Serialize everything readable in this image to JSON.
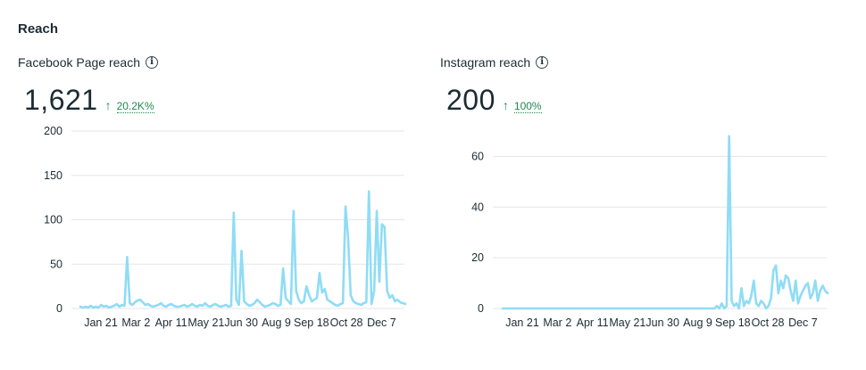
{
  "section_title": "Reach",
  "panels": [
    {
      "title": "Facebook Page reach",
      "icon": "info-icon",
      "value": "1,621",
      "delta": "20.2K%",
      "delta_color": "#1f8a50",
      "chart_data": {
        "type": "line",
        "color": "#8fdcf5",
        "x_tick_labels": [
          "Jan 21",
          "Mar 2",
          "Apr 11",
          "May 21",
          "Jun 30",
          "Aug 9",
          "Sep 18",
          "Oct 28",
          "Dec 7"
        ],
        "y_ticks": [
          0,
          50,
          100,
          150,
          200
        ],
        "ylim": [
          0,
          200
        ],
        "grid": true,
        "series": [
          {
            "values": [
              2,
              1,
              2,
              1,
              3,
              1,
              2,
              1,
              4,
              2,
              3,
              1,
              2,
              3,
              5,
              2,
              4,
              3,
              58,
              6,
              4,
              7,
              9,
              10,
              7,
              4,
              5,
              3,
              2,
              3,
              4,
              6,
              3,
              2,
              4,
              5,
              3,
              2,
              2,
              3,
              4,
              2,
              3,
              5,
              3,
              2,
              4,
              3,
              6,
              3,
              2,
              4,
              5,
              3,
              2,
              3,
              4,
              2,
              3,
              108,
              10,
              4,
              65,
              8,
              5,
              3,
              4,
              6,
              10,
              7,
              4,
              2,
              3,
              4,
              6,
              5,
              3,
              4,
              45,
              12,
              8,
              5,
              110,
              20,
              10,
              6,
              8,
              25,
              15,
              8,
              10,
              12,
              40,
              18,
              22,
              10,
              8,
              6,
              4,
              3,
              5,
              6,
              115,
              80,
              15,
              8,
              6,
              5,
              4,
              6,
              7,
              132,
              5,
              20,
              110,
              30,
              95,
              92,
              20,
              12,
              15,
              8,
              10,
              7,
              6,
              5
            ]
          }
        ]
      }
    },
    {
      "title": "Instagram reach",
      "icon": "info-icon",
      "value": "200",
      "delta": "100%",
      "delta_color": "#1f8a50",
      "chart_data": {
        "type": "line",
        "color": "#8fdcf5",
        "x_tick_labels": [
          "Jan 21",
          "Mar 2",
          "Apr 11",
          "May 21",
          "Jun 30",
          "Aug 9",
          "Sep 18",
          "Oct 28",
          "Dec 7"
        ],
        "y_ticks": [
          0,
          20,
          40,
          60
        ],
        "ylim": [
          0,
          70
        ],
        "grid": true,
        "series": [
          {
            "values": [
              0,
              0,
              0,
              0,
              0,
              0,
              0,
              0,
              0,
              0,
              0,
              0,
              0,
              0,
              0,
              0,
              0,
              0,
              0,
              0,
              0,
              0,
              0,
              0,
              0,
              0,
              0,
              0,
              0,
              0,
              0,
              0,
              0,
              0,
              0,
              0,
              0,
              0,
              0,
              0,
              0,
              0,
              0,
              0,
              0,
              0,
              0,
              0,
              0,
              0,
              0,
              0,
              0,
              0,
              0,
              0,
              0,
              0,
              0,
              0,
              0,
              0,
              0,
              0,
              0,
              0,
              0,
              0,
              0,
              0,
              0,
              0,
              0,
              0,
              0,
              0,
              0,
              0,
              0,
              0,
              0,
              0,
              0,
              0,
              0,
              0,
              0,
              1,
              0,
              2,
              0,
              1,
              68,
              3,
              1,
              2,
              0,
              8,
              1,
              3,
              2,
              5,
              11,
              2,
              1,
              3,
              2,
              0,
              1,
              4,
              15,
              17,
              6,
              11,
              8,
              13,
              12,
              7,
              3,
              11,
              2,
              5,
              7,
              9,
              10,
              4,
              6,
              11,
              3,
              7,
              9,
              7,
              6
            ]
          }
        ]
      }
    }
  ]
}
